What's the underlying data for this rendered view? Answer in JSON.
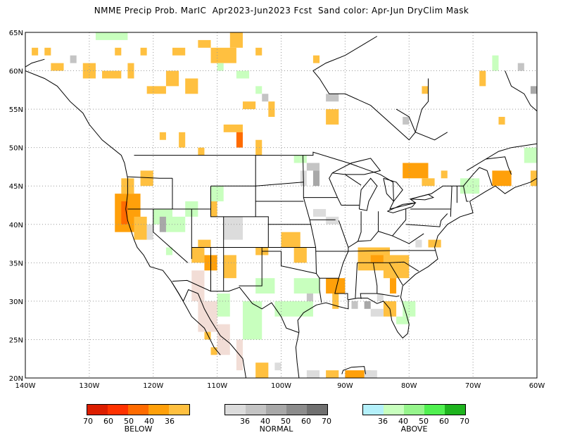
{
  "title": "NMME Precip Prob. MarIC  Apr2023-Jun2023 Fcst  Sand color: Apr-Jun DryClim Mask",
  "map": {
    "lon_ticks": [
      "140W",
      "130W",
      "120W",
      "110W",
      "100W",
      "90W",
      "80W",
      "70W",
      "60W"
    ],
    "lat_ticks": [
      "65N",
      "60N",
      "55N",
      "50N",
      "45N",
      "40N",
      "35N",
      "30N",
      "25N",
      "20N"
    ],
    "lon_range": [
      -140,
      -60
    ],
    "lat_range": [
      20,
      65
    ],
    "grid": "dotted"
  },
  "colors": {
    "below_36": "#ffc040",
    "below_40": "#ffa00a",
    "below_50": "#ff6b00",
    "below_60": "#ff3200",
    "below_70": "#dc1e00",
    "normal_36": "#dcdcdc",
    "normal_40": "#c4c4c4",
    "normal_50": "#a8a8a8",
    "normal_60": "#8c8c8c",
    "normal_70": "#707070",
    "above_36": "#b4f0fa",
    "above_40": "#c8ffbe",
    "above_50": "#96f58c",
    "above_60": "#50f050",
    "above_70": "#1eb41e",
    "dry_mask": "#f2ddd6"
  },
  "legends": [
    {
      "id": "below",
      "caption": "BELOW",
      "labels": [
        "70",
        "60",
        "50",
        "40",
        "36"
      ],
      "swatches": [
        "#dc1e00",
        "#ff3200",
        "#ff6b00",
        "#ffa00a",
        "#ffc040"
      ]
    },
    {
      "id": "normal",
      "caption": "NORMAL",
      "labels": [
        "36",
        "40",
        "50",
        "60",
        "70"
      ],
      "swatches": [
        "#dcdcdc",
        "#c4c4c4",
        "#a8a8a8",
        "#8c8c8c",
        "#707070"
      ]
    },
    {
      "id": "above",
      "caption": "ABOVE",
      "labels": [
        "36",
        "40",
        "50",
        "60",
        "70"
      ],
      "swatches": [
        "#b4f0fa",
        "#c8ffbe",
        "#96f58c",
        "#50f050",
        "#1eb41e"
      ]
    }
  ]
}
